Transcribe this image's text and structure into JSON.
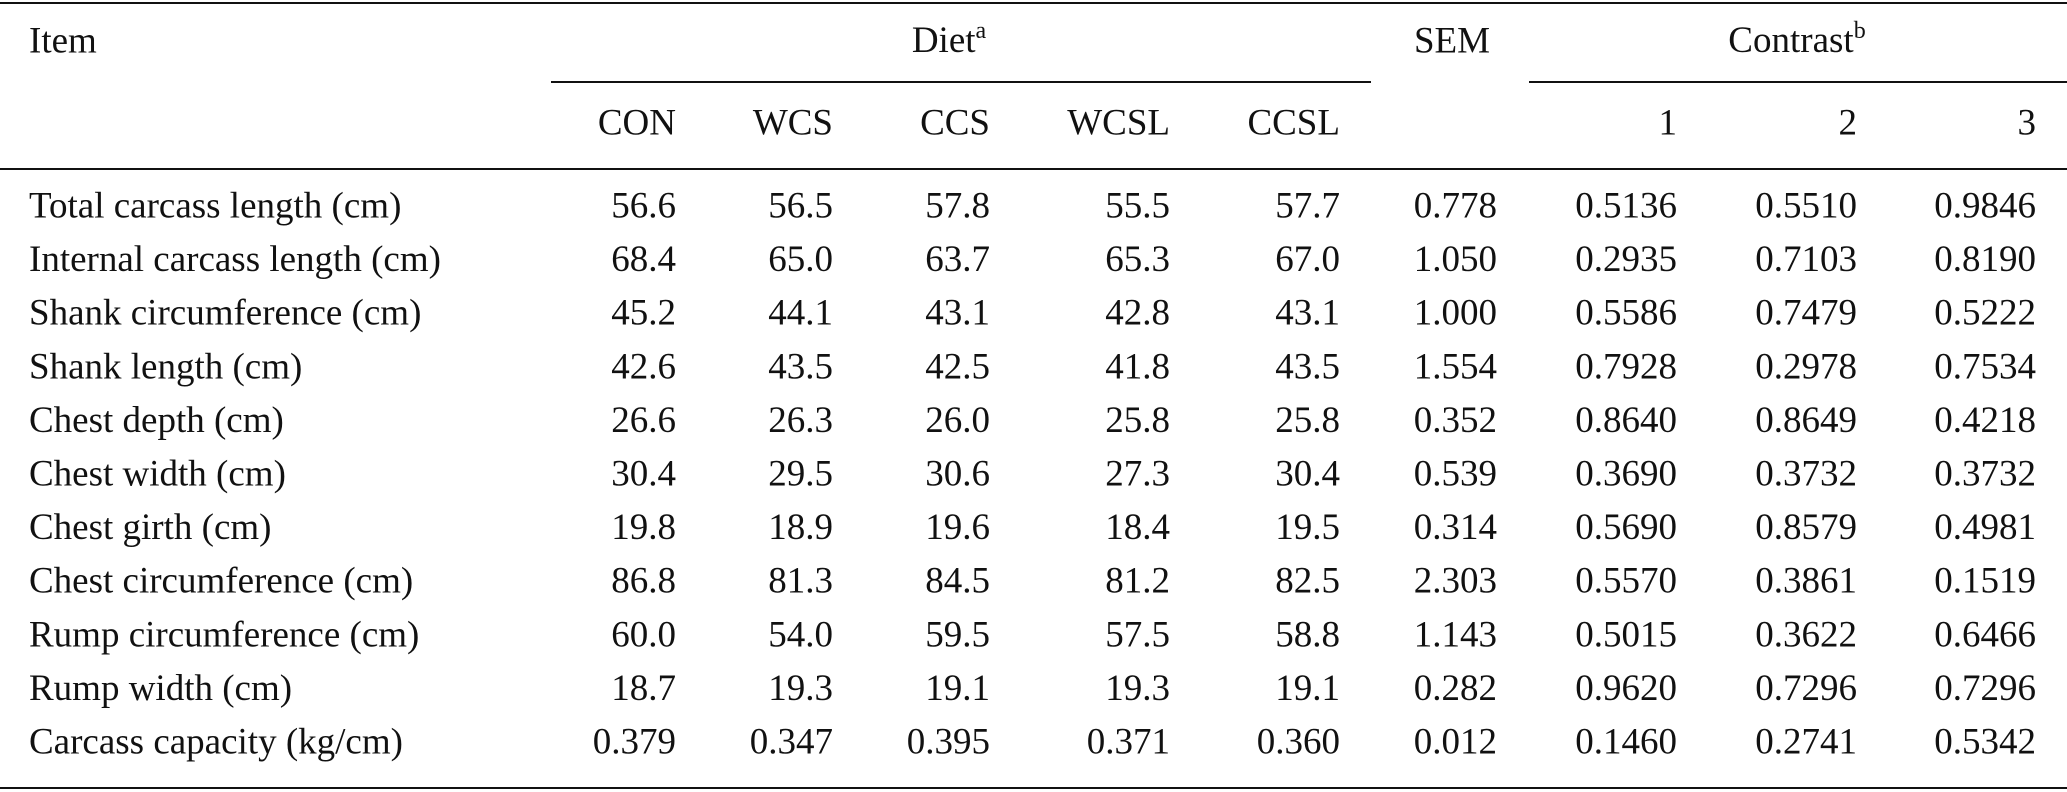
{
  "header": {
    "item": "Item",
    "diet": "Diet",
    "diet_note": "a",
    "sem": "SEM",
    "contrast": "Contrast",
    "contrast_note": "b"
  },
  "diet_columns": [
    "CON",
    "WCS",
    "CCS",
    "WCSL",
    "CCSL"
  ],
  "contrast_columns": [
    "1",
    "2",
    "3"
  ],
  "rows": [
    {
      "label": "Total carcass length (cm)",
      "values": [
        "56.6",
        "56.5",
        "57.8",
        "55.5",
        "57.7",
        "0.778",
        "0.5136",
        "0.5510",
        "0.9846"
      ]
    },
    {
      "label": "Internal carcass length (cm)",
      "values": [
        "68.4",
        "65.0",
        "63.7",
        "65.3",
        "67.0",
        "1.050",
        "0.2935",
        "0.7103",
        "0.8190"
      ]
    },
    {
      "label": "Shank circumference (cm)",
      "values": [
        "45.2",
        "44.1",
        "43.1",
        "42.8",
        "43.1",
        "1.000",
        "0.5586",
        "0.7479",
        "0.5222"
      ]
    },
    {
      "label": "Shank length (cm)",
      "values": [
        "42.6",
        "43.5",
        "42.5",
        "41.8",
        "43.5",
        "1.554",
        "0.7928",
        "0.2978",
        "0.7534"
      ]
    },
    {
      "label": "Chest depth (cm)",
      "values": [
        "26.6",
        "26.3",
        "26.0",
        "25.8",
        "25.8",
        "0.352",
        "0.8640",
        "0.8649",
        "0.4218"
      ]
    },
    {
      "label": "Chest width (cm)",
      "values": [
        "30.4",
        "29.5",
        "30.6",
        "27.3",
        "30.4",
        "0.539",
        "0.3690",
        "0.3732",
        "0.3732"
      ]
    },
    {
      "label": "Chest girth (cm)",
      "values": [
        "19.8",
        "18.9",
        "19.6",
        "18.4",
        "19.5",
        "0.314",
        "0.5690",
        "0.8579",
        "0.4981"
      ]
    },
    {
      "label": "Chest circumference (cm)",
      "values": [
        "86.8",
        "81.3",
        "84.5",
        "81.2",
        "82.5",
        "2.303",
        "0.5570",
        "0.3861",
        "0.1519"
      ]
    },
    {
      "label": "Rump circumference (cm)",
      "values": [
        "60.0",
        "54.0",
        "59.5",
        "57.5",
        "58.8",
        "1.143",
        "0.5015",
        "0.3622",
        "0.6466"
      ]
    },
    {
      "label": "Rump width (cm)",
      "values": [
        "18.7",
        "19.3",
        "19.1",
        "19.3",
        "19.1",
        "0.282",
        "0.9620",
        "0.7296",
        "0.7296"
      ]
    },
    {
      "label": "Carcass capacity (kg/cm)",
      "values": [
        "0.379",
        "0.347",
        "0.395",
        "0.371",
        "0.360",
        "0.012",
        "0.1460",
        "0.2741",
        "0.5342"
      ]
    }
  ]
}
